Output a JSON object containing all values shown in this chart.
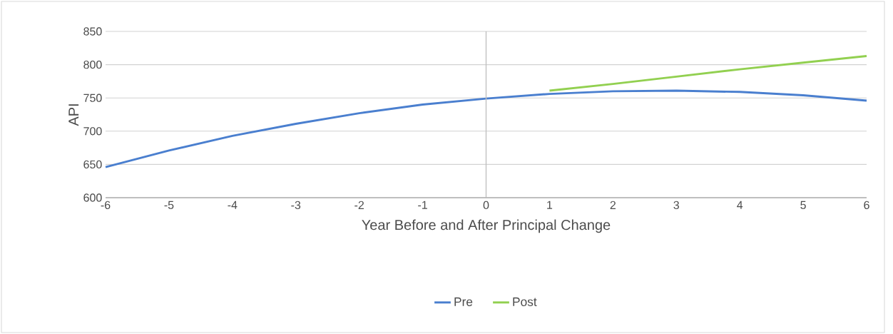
{
  "chart_data": {
    "type": "line",
    "xlabel": "Year Before and After Principal Change",
    "ylabel": "API",
    "x": [
      -6,
      -5,
      -4,
      -3,
      -2,
      -1,
      0,
      1,
      2,
      3,
      4,
      5,
      6
    ],
    "series": [
      {
        "name": "Pre",
        "color": "#4a7fcf",
        "values": [
          646,
          671,
          693,
          711,
          727,
          740,
          749,
          756,
          760,
          761,
          759,
          754,
          746
        ]
      },
      {
        "name": "Post",
        "color": "#92d050",
        "values": [
          null,
          null,
          null,
          null,
          null,
          null,
          null,
          761,
          771,
          782,
          793,
          803,
          813
        ]
      }
    ],
    "xlim": [
      -6,
      6
    ],
    "xticks": [
      -6,
      -5,
      -4,
      -3,
      -2,
      -1,
      0,
      1,
      2,
      3,
      4,
      5,
      6
    ],
    "ylim": [
      600,
      850
    ],
    "yticks": [
      600,
      650,
      700,
      750,
      800,
      850
    ],
    "ref_lines": [
      {
        "axis": "x",
        "value": 0,
        "color": "#bfbfbf"
      }
    ],
    "grid": "y",
    "legend": "bottom",
    "marker": "none",
    "line_style": "solid"
  }
}
